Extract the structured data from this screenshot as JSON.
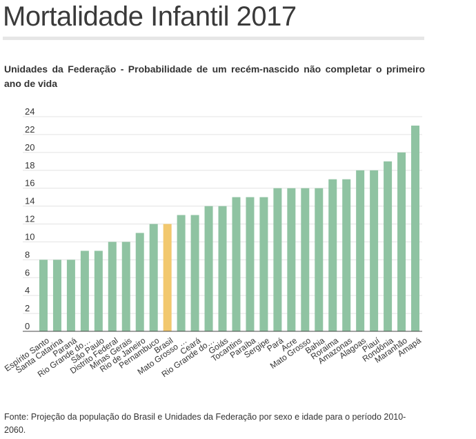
{
  "title": "Mortalidade Infantil 2017",
  "subtitle": "Unidades da Federação - Probabilidade de um recém-nascido não completar o primeiro ano de vida",
  "source": "Fonte: Projeção da população do Brasil e Unidades da Federação por sexo e idade para o período 2010-2060.",
  "colors": {
    "bar": "#8fc3a2",
    "highlight": "#f2c86e",
    "grid": "#e3e3e3",
    "axis": "#444444",
    "text": "#333333"
  },
  "chart_data": {
    "type": "bar",
    "title": "Mortalidade Infantil 2017",
    "xlabel": "",
    "ylabel": "",
    "ylim": [
      0,
      24
    ],
    "yticks": [
      0,
      2,
      4,
      6,
      8,
      10,
      12,
      14,
      16,
      18,
      20,
      22,
      24
    ],
    "grid": true,
    "highlight": "Brasil",
    "categories": [
      "Espírito Santo",
      "Santa Catarina",
      "Paraná",
      "Rio Grande do…",
      "São Paulo",
      "Distrito Federal",
      "Minas Gerais",
      "Rio de Janeiro",
      "Pernambuco",
      "Brasil",
      "Mato Grosso …",
      "Ceará",
      "Rio Grande do…",
      "Goiás",
      "Tocantins",
      "Paraíba",
      "Sergipe",
      "Pará",
      "Acre",
      "Mato Grosso",
      "Bahia",
      "Roraima",
      "Amazonas",
      "Alagoas",
      "Piauí",
      "Rondônia",
      "Maranhão",
      "Amapá"
    ],
    "values": [
      8,
      8,
      8,
      9,
      9,
      10,
      10,
      11,
      12,
      12,
      13,
      13,
      14,
      14,
      15,
      15,
      15,
      16,
      16,
      16,
      16,
      17,
      17,
      18,
      18,
      19,
      20,
      23
    ]
  }
}
